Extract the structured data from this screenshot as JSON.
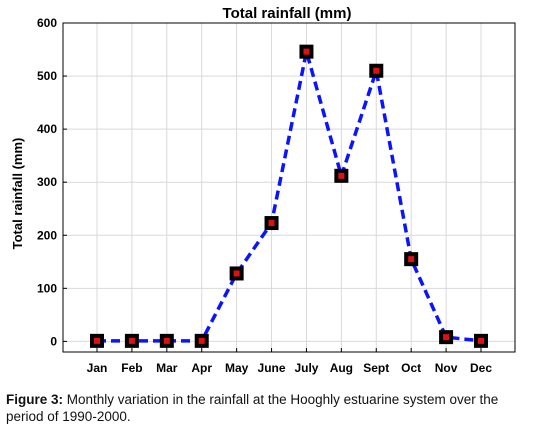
{
  "chart_data": {
    "type": "line",
    "title": "Total rainfall (mm)",
    "xlabel": "",
    "ylabel": "Total rainfall (mm)",
    "categories": [
      "Jan",
      "Feb",
      "Mar",
      "Apr",
      "May",
      "June",
      "July",
      "Aug",
      "Sept",
      "Oct",
      "Nov",
      "Dec"
    ],
    "values": [
      1,
      1,
      1,
      1,
      128,
      223,
      546,
      312,
      510,
      155,
      8,
      1
    ],
    "ylim": [
      -20,
      600
    ],
    "yticks": [
      0,
      100,
      200,
      300,
      400,
      500,
      600
    ],
    "grid": true,
    "line_color": "#0a14ff",
    "line_style": "dashed",
    "marker_outer_color": "#000000",
    "marker_inner_color": "#e01010"
  },
  "caption": {
    "label": "Figure 3:",
    "text": " Monthly variation in the rainfall at the Hooghly estuarine system over the period of 1990-2000."
  }
}
